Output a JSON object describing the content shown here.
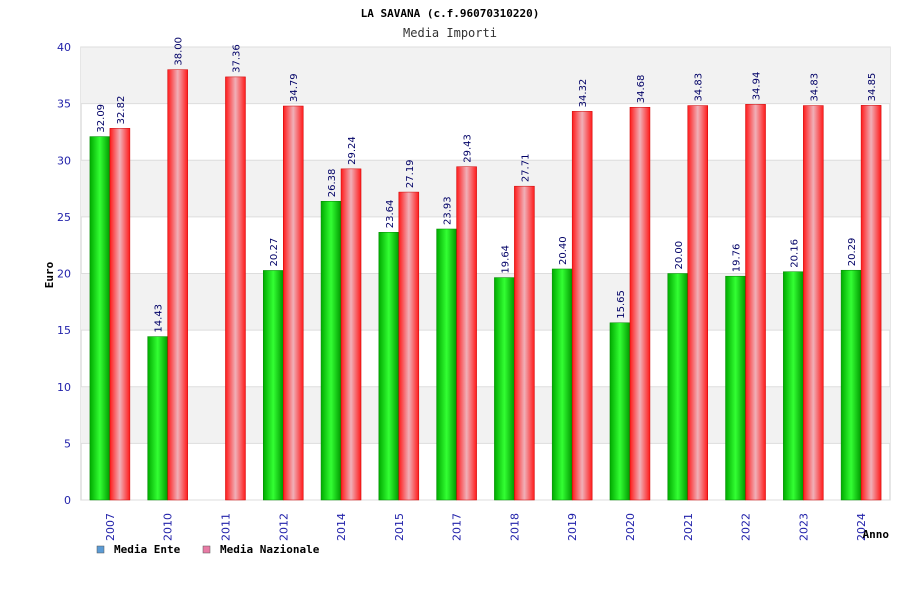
{
  "chart_data": {
    "type": "bar",
    "title": "LA SAVANA (c.f.96070310220)",
    "subtitle": "Media Importi",
    "xlabel": "Anno",
    "ylabel": "Euro",
    "ylim": [
      0,
      40
    ],
    "yticks": [
      "0",
      "5",
      "10",
      "15",
      "20",
      "25",
      "30",
      "35",
      "40"
    ],
    "grid": true,
    "legend_position": "bottom-left",
    "categories": [
      "2007",
      "2010",
      "2011",
      "2012",
      "2014",
      "2015",
      "2017",
      "2018",
      "2019",
      "2020",
      "2021",
      "2022",
      "2023",
      "2024"
    ],
    "series": [
      {
        "name": "Media Ente",
        "color": "#00cc00",
        "legend_color": "#5b9bd5",
        "values": [
          32.09,
          14.43,
          null,
          20.27,
          26.38,
          23.64,
          23.93,
          19.64,
          20.4,
          15.65,
          20.0,
          19.76,
          20.16,
          20.29
        ],
        "labels": [
          "32.09",
          "14.43",
          "",
          "20.27",
          "26.38",
          "23.64",
          "23.93",
          "19.64",
          "20.40",
          "15.65",
          "20.00",
          "19.76",
          "20.16",
          "20.29"
        ]
      },
      {
        "name": "Media Nazionale",
        "color": "#ee1111",
        "legend_color": "#e87ba5",
        "values": [
          32.82,
          38.0,
          37.36,
          34.79,
          29.24,
          27.19,
          29.43,
          27.71,
          34.32,
          34.68,
          34.83,
          34.94,
          34.83,
          34.85
        ],
        "labels": [
          "32.82",
          "38.00",
          "37.36",
          "34.79",
          "29.24",
          "27.19",
          "29.43",
          "27.71",
          "34.32",
          "34.68",
          "34.83",
          "34.94",
          "34.83",
          "34.85"
        ]
      }
    ]
  }
}
